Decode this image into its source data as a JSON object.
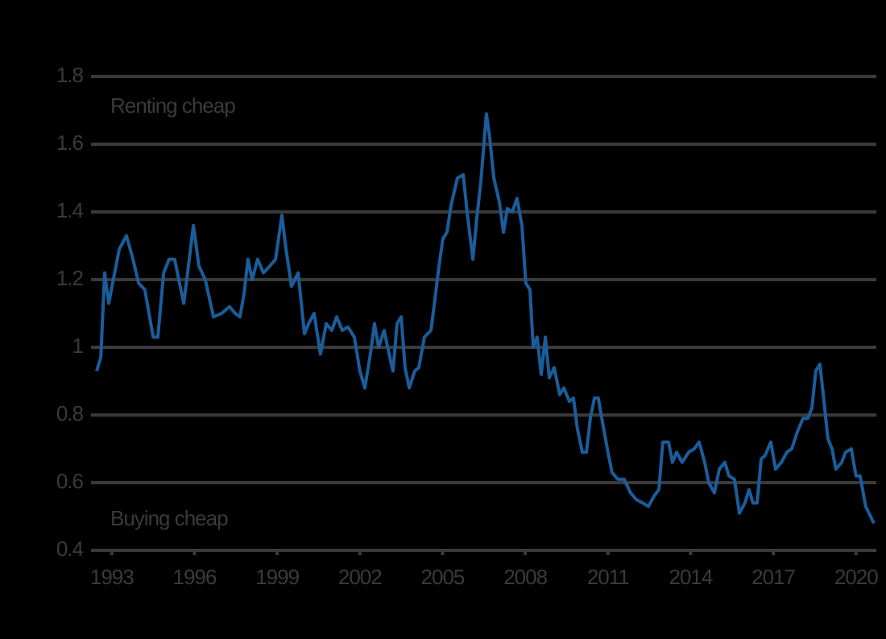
{
  "chart_data": {
    "type": "line",
    "annotations": [
      "Renting cheap",
      "Buying cheap"
    ],
    "xlim": [
      1992.45,
      2020.65
    ],
    "xticks": [
      1993,
      1996,
      1999,
      2002,
      2005,
      2008,
      2011,
      2014,
      2017,
      2020
    ],
    "ylim": [
      0.4,
      1.8
    ],
    "yticks": [
      0.4,
      0.6,
      0.8,
      1.0,
      1.2,
      1.4,
      1.6,
      1.8
    ],
    "grid": true,
    "series": [
      {
        "color": "#1b5d9b",
        "x": [
          1992.45,
          1992.6,
          1992.74,
          1992.89,
          1993.03,
          1993.27,
          1993.53,
          1993.77,
          1993.97,
          1994.2,
          1994.5,
          1994.67,
          1994.88,
          1995.08,
          1995.28,
          1995.43,
          1995.61,
          1995.81,
          1995.96,
          1996.16,
          1996.39,
          1996.69,
          1996.98,
          1997.27,
          1997.48,
          1997.65,
          1997.8,
          1997.94,
          1998.09,
          1998.29,
          1998.5,
          1998.73,
          1998.94,
          1999.17,
          1999.32,
          1999.52,
          1999.76,
          1999.99,
          2000.14,
          2000.34,
          2000.57,
          2000.78,
          2000.98,
          2001.16,
          2001.36,
          2001.57,
          2001.8,
          2002.0,
          2002.18,
          2002.38,
          2002.53,
          2002.68,
          2002.88,
          2003.06,
          2003.2,
          2003.35,
          2003.5,
          2003.64,
          2003.79,
          2003.99,
          2004.14,
          2004.34,
          2004.58,
          2004.72,
          2004.87,
          2005.01,
          2005.16,
          2005.31,
          2005.54,
          2005.75,
          2005.89,
          2006.1,
          2006.24,
          2006.39,
          2006.59,
          2006.71,
          2006.86,
          2007.06,
          2007.21,
          2007.35,
          2007.53,
          2007.7,
          2007.88,
          2008.02,
          2008.17,
          2008.29,
          2008.43,
          2008.58,
          2008.73,
          2008.87,
          2009.05,
          2009.25,
          2009.4,
          2009.6,
          2009.75,
          2009.89,
          2010.07,
          2010.22,
          2010.36,
          2010.51,
          2010.65,
          2010.8,
          2011.0,
          2011.15,
          2011.36,
          2011.59,
          2011.82,
          2012.03,
          2012.26,
          2012.47,
          2012.67,
          2012.85,
          2012.99,
          2013.2,
          2013.34,
          2013.49,
          2013.69,
          2013.93,
          2014.13,
          2014.31,
          2014.51,
          2014.66,
          2014.86,
          2015.04,
          2015.24,
          2015.39,
          2015.59,
          2015.77,
          2015.97,
          2016.12,
          2016.26,
          2016.41,
          2016.56,
          2016.7,
          2016.91,
          2017.08,
          2017.29,
          2017.49,
          2017.67,
          2017.87,
          2018.08,
          2018.25,
          2018.4,
          2018.54,
          2018.69,
          2018.84,
          2018.98,
          2019.13,
          2019.27,
          2019.48,
          2019.62,
          2019.83,
          2020.0,
          2020.15,
          2020.35,
          2020.65
        ],
        "values": [
          0.93,
          0.97,
          1.22,
          1.13,
          1.19,
          1.29,
          1.33,
          1.26,
          1.19,
          1.17,
          1.03,
          1.03,
          1.22,
          1.26,
          1.26,
          1.2,
          1.13,
          1.26,
          1.36,
          1.24,
          1.2,
          1.09,
          1.1,
          1.12,
          1.1,
          1.09,
          1.16,
          1.26,
          1.2,
          1.26,
          1.22,
          1.24,
          1.26,
          1.39,
          1.29,
          1.18,
          1.22,
          1.04,
          1.07,
          1.1,
          0.98,
          1.07,
          1.05,
          1.09,
          1.05,
          1.06,
          1.03,
          0.93,
          0.88,
          0.98,
          1.07,
          1.0,
          1.05,
          0.98,
          0.93,
          1.07,
          1.09,
          0.94,
          0.88,
          0.93,
          0.94,
          1.03,
          1.05,
          1.14,
          1.24,
          1.32,
          1.34,
          1.42,
          1.5,
          1.51,
          1.4,
          1.26,
          1.38,
          1.49,
          1.69,
          1.62,
          1.5,
          1.43,
          1.34,
          1.41,
          1.4,
          1.44,
          1.36,
          1.19,
          1.17,
          1.0,
          1.03,
          0.92,
          1.03,
          0.91,
          0.94,
          0.86,
          0.88,
          0.84,
          0.85,
          0.76,
          0.69,
          0.69,
          0.79,
          0.85,
          0.85,
          0.78,
          0.69,
          0.63,
          0.61,
          0.61,
          0.57,
          0.55,
          0.54,
          0.53,
          0.56,
          0.58,
          0.72,
          0.72,
          0.66,
          0.69,
          0.66,
          0.69,
          0.7,
          0.72,
          0.66,
          0.6,
          0.57,
          0.64,
          0.66,
          0.62,
          0.61,
          0.51,
          0.54,
          0.58,
          0.54,
          0.54,
          0.67,
          0.68,
          0.72,
          0.64,
          0.66,
          0.69,
          0.7,
          0.75,
          0.79,
          0.79,
          0.82,
          0.93,
          0.95,
          0.84,
          0.73,
          0.7,
          0.64,
          0.66,
          0.69,
          0.7,
          0.62,
          0.62,
          0.53,
          0.48
        ]
      }
    ]
  }
}
